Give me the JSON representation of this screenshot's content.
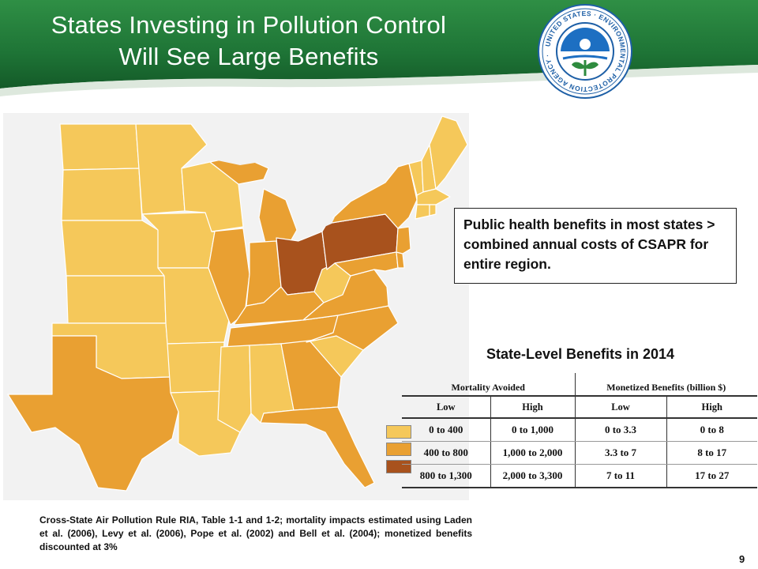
{
  "slide": {
    "title_line1": "States Investing in Pollution Control",
    "title_line2": "Will See Large Benefits",
    "logo_text": "UNITED STATES · ENVIRONMENTAL PROTECTION AGENCY",
    "page_number": "9"
  },
  "callout": {
    "text": "Public health benefits in most states > combined annual costs of CSAPR for entire region."
  },
  "table": {
    "title": "State-Level Benefits in 2014",
    "group_headers": [
      "Mortality Avoided",
      "Monetized Benefits (billion $)"
    ],
    "sub_headers": [
      "Low",
      "High",
      "Low",
      "High"
    ],
    "rows": [
      [
        "0 to 400",
        "0 to 1,000",
        "0 to 3.3",
        "0 to 8"
      ],
      [
        "400 to 800",
        "1,000 to 2,000",
        "3.3 to 7",
        "8 to 17"
      ],
      [
        "800 to 1,300",
        "2,000 to 3,300",
        "7 to 11",
        "17 to 27"
      ]
    ],
    "legend_colors": [
      "#f5c85a",
      "#e9a032",
      "#a8521d"
    ]
  },
  "source_note": "Cross-State Air Pollution Rule RIA, Table 1-1 and 1-2; mortality impacts estimated using Laden et al. (2006), Levy et al. (2006), Pope et al. (2002) and Bell et al. (2004); monetized benefits discounted at 3%",
  "colors": {
    "header_green": "#1f7a3a",
    "tier_low": "#f5c85a",
    "tier_mid": "#e9a032",
    "tier_high": "#a8521d"
  }
}
